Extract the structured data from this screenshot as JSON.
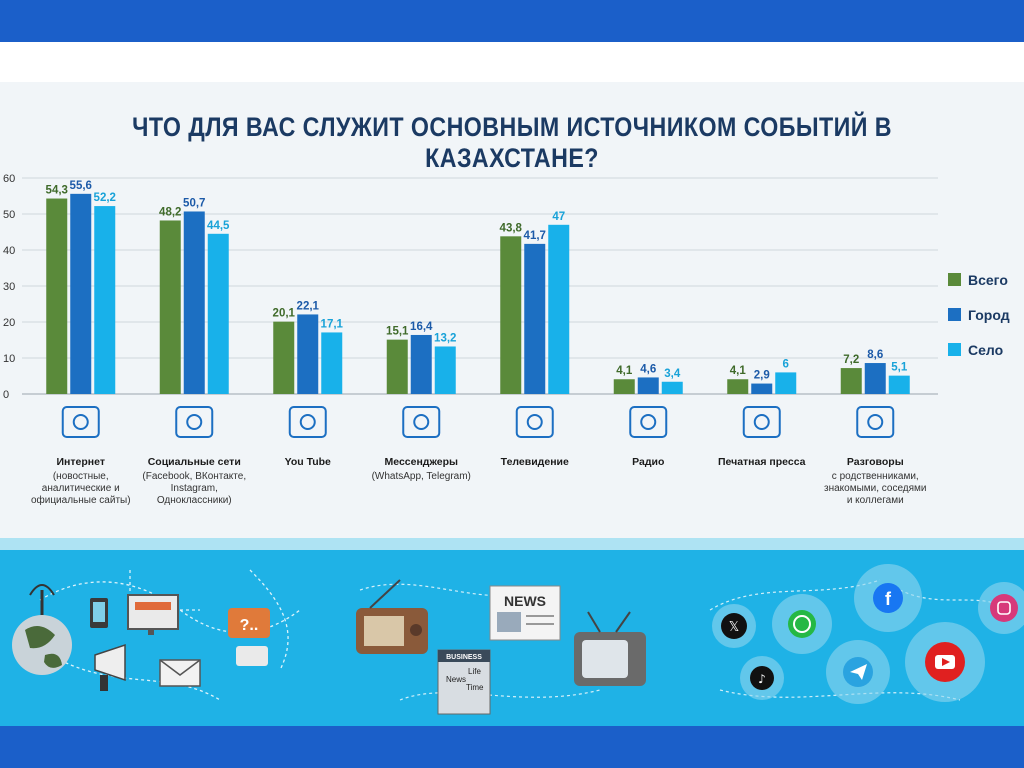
{
  "title": "ЧТО ДЛЯ ВАС СЛУЖИТ ОСНОВНЫМ ИСТОЧНИКОМ СОБЫТИЙ В КАЗАХСТАНЕ?",
  "colors": {
    "Всего": "#5a8a3a",
    "Город": "#1c6fc2",
    "Село": "#18b1ea",
    "title": "#1b3a63",
    "band": "#1b5fc9",
    "illustration_bg": "#1fb2e6"
  },
  "legend": [
    "Всего",
    "Город",
    "Село"
  ],
  "categories": [
    {
      "name": "Интернет",
      "sub": [
        "(новостные,",
        "аналитические и",
        "официальные сайты)"
      ],
      "icon": "www-globe-icon"
    },
    {
      "name": "Социальные сети",
      "sub": [
        "(Facebook, ВКонтакте,",
        "Instagram,",
        "Одноклассники)"
      ],
      "icon": "social-network-icon"
    },
    {
      "name": "You Tube",
      "sub": [],
      "icon": "youtube-play-icon"
    },
    {
      "name": "Мессенджеры",
      "sub": [
        "(WhatsApp, Telegram)"
      ],
      "icon": "messenger-icon"
    },
    {
      "name": "Телевидение",
      "sub": [],
      "icon": "tv-icon"
    },
    {
      "name": "Радио",
      "sub": [],
      "icon": "radio-icon"
    },
    {
      "name": "Печатная пресса",
      "sub": [],
      "icon": "newspaper-icon"
    },
    {
      "name": "Разговоры",
      "sub": [
        "с родственниками,",
        "знакомыми, соседями",
        "и коллегами"
      ],
      "icon": "conversation-icon"
    }
  ],
  "chart_data": {
    "type": "bar",
    "title": "ЧТО ДЛЯ ВАС СЛУЖИТ ОСНОВНЫМ ИСТОЧНИКОМ СОБЫТИЙ В КАЗАХСТАНЕ?",
    "categories": [
      "Интернет",
      "Социальные сети",
      "You Tube",
      "Мессенджеры",
      "Телевидение",
      "Радио",
      "Печатная пресса",
      "Разговоры"
    ],
    "series": [
      {
        "name": "Всего",
        "values": [
          54.3,
          48.2,
          20.1,
          15.1,
          43.8,
          4.1,
          4.1,
          7.2
        ],
        "labels": [
          "54,3",
          "48,2",
          "20,1",
          "15,1",
          "43,8",
          "4,1",
          "4,1",
          "7,2"
        ]
      },
      {
        "name": "Город",
        "values": [
          55.6,
          50.7,
          22.1,
          16.4,
          41.7,
          4.6,
          2.9,
          8.6
        ],
        "labels": [
          "55,6",
          "50,7",
          "22,1",
          "16,4",
          "41,7",
          "4,6",
          "2,9",
          "8,6"
        ]
      },
      {
        "name": "Село",
        "values": [
          52.2,
          44.5,
          17.1,
          13.2,
          47,
          3.4,
          6,
          5.1
        ],
        "labels": [
          "52,2",
          "44,5",
          "17,1",
          "13,2",
          "47",
          "3,4",
          "6",
          "5,1"
        ]
      }
    ],
    "y_ticks": [
      "0",
      "10",
      "20",
      "30",
      "40",
      "50",
      "60"
    ],
    "ylim": [
      0,
      60
    ],
    "grid": true,
    "legend_position": "right"
  },
  "illustration": {
    "newspaper_headline": "NEWS",
    "magazine_masthead": "BUSINESS",
    "magazine_words": [
      "News",
      "Life",
      "Time"
    ],
    "speech_bubble": "?..",
    "web_label": "www."
  }
}
